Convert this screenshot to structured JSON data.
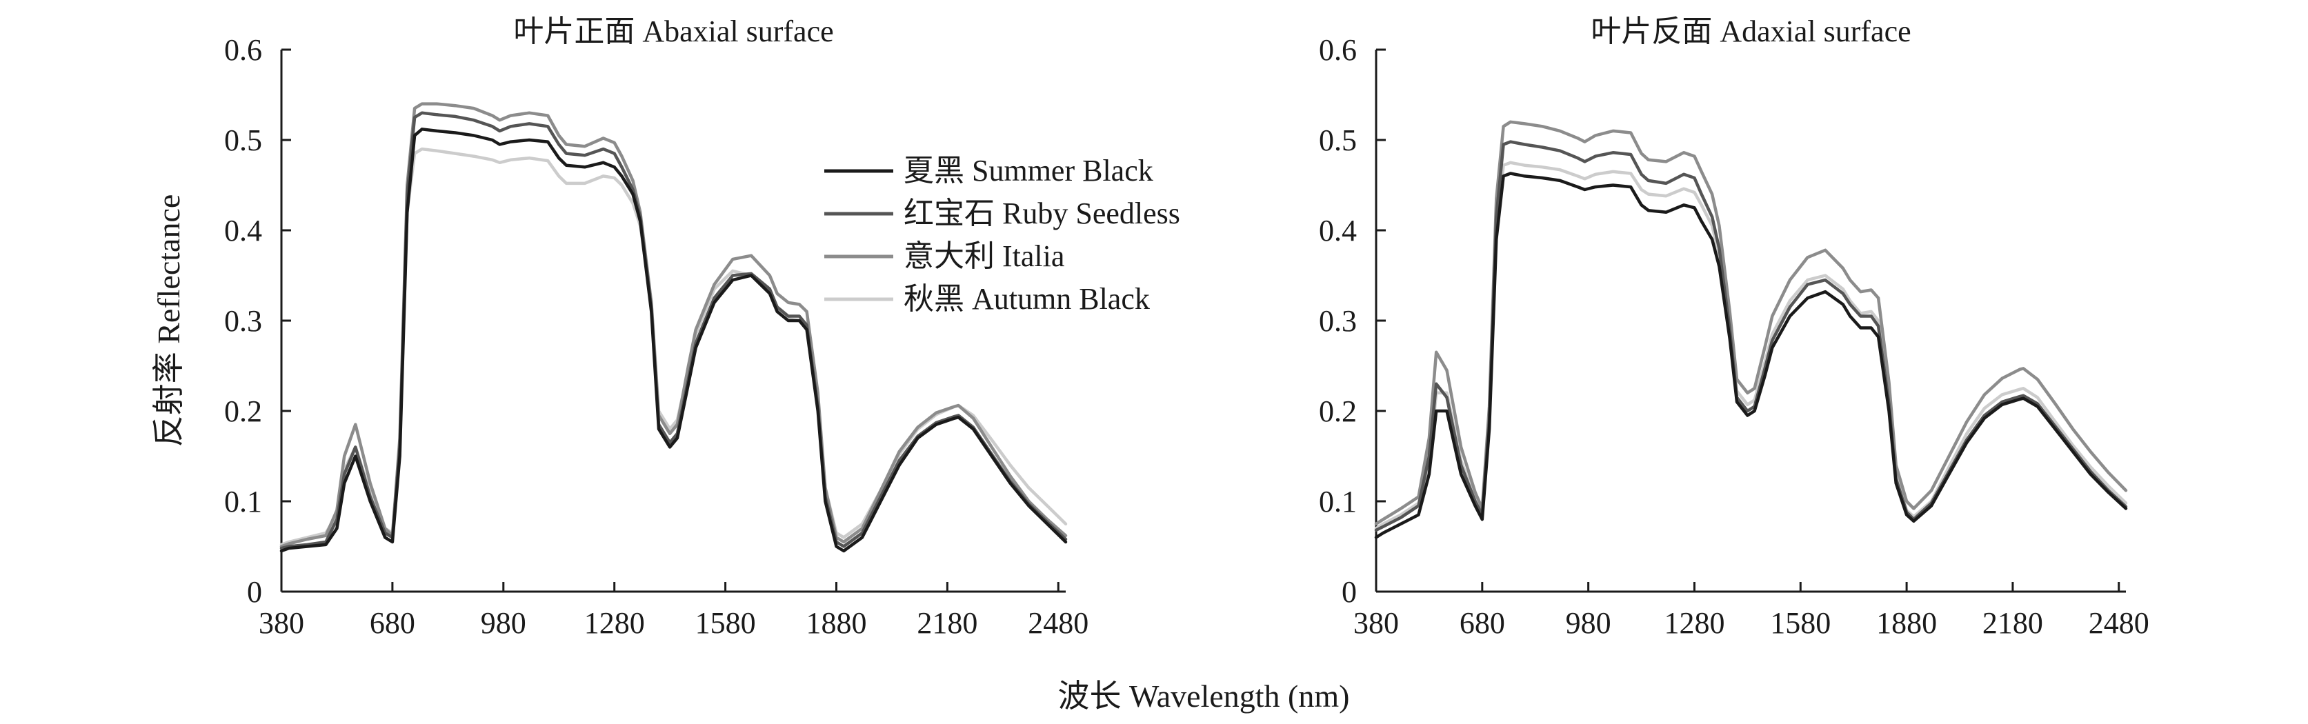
{
  "chart_data": [
    {
      "type": "line",
      "title": "叶片正面 Abaxial surface",
      "ylabel": "反射率 Reflectance",
      "xlim": [
        380,
        2500
      ],
      "ylim": [
        0,
        0.6
      ],
      "xticks": [
        "380",
        "680",
        "980",
        "1280",
        "1580",
        "1880",
        "2180",
        "2480"
      ],
      "yticks": [
        "0",
        "0.1",
        "0.2",
        "0.3",
        "0.4",
        "0.5",
        "0.6"
      ],
      "legend": "top-right",
      "series": [
        {
          "name": "夏黑 Summer Black",
          "color": "#1a1a1a",
          "x": [
            380,
            400,
            450,
            500,
            530,
            550,
            580,
            620,
            660,
            680,
            700,
            720,
            740,
            760,
            800,
            850,
            900,
            950,
            970,
            1000,
            1050,
            1100,
            1130,
            1150,
            1200,
            1250,
            1280,
            1300,
            1330,
            1350,
            1380,
            1400,
            1430,
            1450,
            1480,
            1500,
            1550,
            1600,
            1650,
            1700,
            1720,
            1750,
            1780,
            1800,
            1830,
            1850,
            1880,
            1900,
            1950,
            2000,
            2050,
            2100,
            2150,
            2200,
            2210,
            2250,
            2300,
            2350,
            2400,
            2450,
            2500
          ],
          "y": [
            0.045,
            0.048,
            0.05,
            0.052,
            0.07,
            0.12,
            0.15,
            0.1,
            0.06,
            0.055,
            0.15,
            0.42,
            0.505,
            0.512,
            0.51,
            0.508,
            0.505,
            0.5,
            0.495,
            0.498,
            0.5,
            0.498,
            0.48,
            0.472,
            0.47,
            0.475,
            0.47,
            0.46,
            0.44,
            0.41,
            0.31,
            0.18,
            0.16,
            0.17,
            0.23,
            0.27,
            0.32,
            0.345,
            0.35,
            0.33,
            0.31,
            0.3,
            0.3,
            0.29,
            0.2,
            0.1,
            0.05,
            0.045,
            0.06,
            0.1,
            0.14,
            0.17,
            0.185,
            0.192,
            0.193,
            0.18,
            0.15,
            0.12,
            0.095,
            0.075,
            0.055
          ]
        },
        {
          "name": "红宝石 Ruby Seedless",
          "color": "#555555",
          "x": [
            380,
            400,
            450,
            500,
            530,
            550,
            580,
            620,
            660,
            680,
            700,
            720,
            740,
            760,
            800,
            850,
            900,
            950,
            970,
            1000,
            1050,
            1100,
            1130,
            1150,
            1200,
            1250,
            1280,
            1300,
            1330,
            1350,
            1380,
            1400,
            1430,
            1450,
            1480,
            1500,
            1550,
            1600,
            1650,
            1700,
            1720,
            1750,
            1780,
            1800,
            1830,
            1850,
            1880,
            1900,
            1950,
            2000,
            2050,
            2100,
            2150,
            2200,
            2210,
            2250,
            2300,
            2350,
            2400,
            2450,
            2500
          ],
          "y": [
            0.048,
            0.05,
            0.052,
            0.055,
            0.08,
            0.13,
            0.16,
            0.105,
            0.065,
            0.06,
            0.16,
            0.44,
            0.525,
            0.53,
            0.528,
            0.526,
            0.522,
            0.515,
            0.51,
            0.515,
            0.518,
            0.515,
            0.495,
            0.485,
            0.483,
            0.49,
            0.485,
            0.47,
            0.445,
            0.415,
            0.315,
            0.185,
            0.165,
            0.175,
            0.235,
            0.275,
            0.325,
            0.35,
            0.352,
            0.335,
            0.315,
            0.305,
            0.305,
            0.295,
            0.205,
            0.105,
            0.055,
            0.05,
            0.065,
            0.105,
            0.145,
            0.172,
            0.187,
            0.194,
            0.195,
            0.182,
            0.152,
            0.122,
            0.097,
            0.077,
            0.058
          ]
        },
        {
          "name": "意大利 Italia",
          "color": "#8c8c8c",
          "x": [
            380,
            400,
            450,
            500,
            530,
            550,
            580,
            620,
            660,
            680,
            700,
            720,
            740,
            760,
            800,
            850,
            900,
            950,
            970,
            1000,
            1050,
            1100,
            1130,
            1150,
            1200,
            1250,
            1280,
            1300,
            1330,
            1350,
            1380,
            1400,
            1430,
            1450,
            1480,
            1500,
            1550,
            1600,
            1650,
            1700,
            1720,
            1750,
            1780,
            1800,
            1830,
            1850,
            1880,
            1900,
            1950,
            2000,
            2050,
            2100,
            2150,
            2200,
            2210,
            2250,
            2300,
            2350,
            2400,
            2450,
            2500
          ],
          "y": [
            0.05,
            0.053,
            0.058,
            0.062,
            0.09,
            0.15,
            0.185,
            0.12,
            0.07,
            0.062,
            0.17,
            0.45,
            0.535,
            0.54,
            0.54,
            0.538,
            0.535,
            0.527,
            0.522,
            0.527,
            0.53,
            0.527,
            0.505,
            0.495,
            0.493,
            0.502,
            0.497,
            0.482,
            0.455,
            0.42,
            0.32,
            0.195,
            0.175,
            0.185,
            0.25,
            0.29,
            0.34,
            0.368,
            0.372,
            0.35,
            0.33,
            0.32,
            0.318,
            0.31,
            0.22,
            0.115,
            0.06,
            0.055,
            0.07,
            0.112,
            0.155,
            0.182,
            0.198,
            0.205,
            0.206,
            0.192,
            0.16,
            0.128,
            0.1,
            0.08,
            0.062
          ]
        },
        {
          "name": "秋黑 Autumn Black",
          "color": "#cccccc",
          "x": [
            380,
            400,
            450,
            500,
            530,
            550,
            580,
            620,
            660,
            680,
            700,
            720,
            740,
            760,
            800,
            850,
            900,
            950,
            970,
            1000,
            1050,
            1100,
            1130,
            1150,
            1200,
            1250,
            1280,
            1300,
            1330,
            1350,
            1380,
            1400,
            1430,
            1450,
            1480,
            1500,
            1550,
            1600,
            1650,
            1700,
            1720,
            1750,
            1780,
            1800,
            1830,
            1850,
            1880,
            1900,
            1950,
            2000,
            2050,
            2100,
            2150,
            2200,
            2210,
            2250,
            2300,
            2350,
            2400,
            2450,
            2500
          ],
          "y": [
            0.052,
            0.055,
            0.06,
            0.065,
            0.085,
            0.135,
            0.16,
            0.11,
            0.07,
            0.065,
            0.16,
            0.42,
            0.485,
            0.49,
            0.488,
            0.485,
            0.482,
            0.478,
            0.475,
            0.478,
            0.48,
            0.477,
            0.46,
            0.452,
            0.452,
            0.46,
            0.458,
            0.45,
            0.43,
            0.405,
            0.32,
            0.2,
            0.18,
            0.19,
            0.245,
            0.285,
            0.335,
            0.355,
            0.35,
            0.33,
            0.312,
            0.302,
            0.3,
            0.292,
            0.21,
            0.115,
            0.065,
            0.06,
            0.075,
            0.112,
            0.152,
            0.18,
            0.196,
            0.205,
            0.206,
            0.195,
            0.168,
            0.14,
            0.115,
            0.095,
            0.075
          ]
        }
      ]
    },
    {
      "type": "line",
      "title": "叶片反面 Adaxial surface",
      "ylabel": "",
      "xlim": [
        380,
        2500
      ],
      "ylim": [
        0,
        0.6
      ],
      "xticks": [
        "380",
        "680",
        "980",
        "1280",
        "1580",
        "1880",
        "2180",
        "2480"
      ],
      "yticks": [
        "0",
        "0.1",
        "0.2",
        "0.3",
        "0.4",
        "0.5",
        "0.6"
      ],
      "legend": "none",
      "series": [
        {
          "name": "夏黑 Summer Black",
          "color": "#1a1a1a",
          "x": [
            380,
            400,
            450,
            500,
            530,
            550,
            580,
            620,
            660,
            680,
            700,
            720,
            740,
            760,
            800,
            850,
            900,
            950,
            970,
            1000,
            1050,
            1100,
            1130,
            1150,
            1200,
            1250,
            1280,
            1300,
            1330,
            1350,
            1380,
            1400,
            1430,
            1450,
            1480,
            1500,
            1550,
            1600,
            1650,
            1700,
            1720,
            1750,
            1780,
            1800,
            1830,
            1850,
            1880,
            1900,
            1950,
            2000,
            2050,
            2100,
            2150,
            2200,
            2210,
            2250,
            2300,
            2350,
            2400,
            2450,
            2500
          ],
          "y": [
            0.06,
            0.065,
            0.075,
            0.085,
            0.13,
            0.2,
            0.2,
            0.13,
            0.095,
            0.08,
            0.18,
            0.39,
            0.46,
            0.463,
            0.46,
            0.458,
            0.455,
            0.448,
            0.445,
            0.448,
            0.45,
            0.448,
            0.428,
            0.422,
            0.42,
            0.428,
            0.425,
            0.41,
            0.39,
            0.36,
            0.28,
            0.21,
            0.195,
            0.2,
            0.24,
            0.27,
            0.305,
            0.325,
            0.332,
            0.318,
            0.305,
            0.292,
            0.292,
            0.282,
            0.2,
            0.12,
            0.085,
            0.078,
            0.095,
            0.13,
            0.165,
            0.192,
            0.207,
            0.213,
            0.214,
            0.205,
            0.18,
            0.155,
            0.13,
            0.11,
            0.092
          ]
        },
        {
          "name": "红宝石 Ruby Seedless",
          "color": "#555555",
          "x": [
            380,
            400,
            450,
            500,
            530,
            550,
            580,
            620,
            660,
            680,
            700,
            720,
            740,
            760,
            800,
            850,
            900,
            950,
            970,
            1000,
            1050,
            1100,
            1130,
            1150,
            1200,
            1250,
            1280,
            1300,
            1330,
            1350,
            1380,
            1400,
            1430,
            1450,
            1480,
            1500,
            1550,
            1600,
            1650,
            1700,
            1720,
            1750,
            1780,
            1800,
            1830,
            1850,
            1880,
            1900,
            1950,
            2000,
            2050,
            2100,
            2150,
            2200,
            2210,
            2250,
            2300,
            2350,
            2400,
            2450,
            2500
          ],
          "y": [
            0.068,
            0.072,
            0.082,
            0.095,
            0.15,
            0.23,
            0.215,
            0.14,
            0.1,
            0.085,
            0.19,
            0.415,
            0.495,
            0.498,
            0.495,
            0.492,
            0.488,
            0.48,
            0.476,
            0.482,
            0.486,
            0.484,
            0.462,
            0.455,
            0.452,
            0.462,
            0.458,
            0.44,
            0.415,
            0.38,
            0.29,
            0.215,
            0.2,
            0.205,
            0.248,
            0.278,
            0.315,
            0.34,
            0.345,
            0.33,
            0.318,
            0.305,
            0.305,
            0.294,
            0.208,
            0.125,
            0.088,
            0.08,
            0.098,
            0.133,
            0.168,
            0.195,
            0.21,
            0.216,
            0.217,
            0.208,
            0.183,
            0.158,
            0.133,
            0.112,
            0.094
          ]
        },
        {
          "name": "意大利 Italia",
          "color": "#8c8c8c",
          "x": [
            380,
            400,
            450,
            500,
            530,
            550,
            580,
            620,
            660,
            680,
            700,
            720,
            740,
            760,
            800,
            850,
            900,
            950,
            970,
            1000,
            1050,
            1100,
            1130,
            1150,
            1200,
            1250,
            1280,
            1300,
            1330,
            1350,
            1380,
            1400,
            1430,
            1450,
            1480,
            1500,
            1550,
            1600,
            1650,
            1700,
            1720,
            1750,
            1780,
            1800,
            1830,
            1850,
            1880,
            1900,
            1950,
            2000,
            2050,
            2100,
            2150,
            2200,
            2210,
            2250,
            2300,
            2350,
            2400,
            2450,
            2500
          ],
          "y": [
            0.075,
            0.08,
            0.092,
            0.105,
            0.17,
            0.265,
            0.245,
            0.16,
            0.11,
            0.092,
            0.205,
            0.435,
            0.515,
            0.52,
            0.518,
            0.515,
            0.51,
            0.502,
            0.498,
            0.505,
            0.51,
            0.508,
            0.485,
            0.478,
            0.476,
            0.486,
            0.482,
            0.465,
            0.44,
            0.405,
            0.31,
            0.235,
            0.22,
            0.225,
            0.272,
            0.305,
            0.345,
            0.37,
            0.378,
            0.358,
            0.345,
            0.332,
            0.334,
            0.325,
            0.232,
            0.14,
            0.1,
            0.092,
            0.112,
            0.15,
            0.188,
            0.218,
            0.236,
            0.246,
            0.247,
            0.235,
            0.208,
            0.18,
            0.155,
            0.132,
            0.112
          ]
        },
        {
          "name": "秋黑 Autumn Black",
          "color": "#cccccc",
          "x": [
            380,
            400,
            450,
            500,
            530,
            550,
            580,
            620,
            660,
            680,
            700,
            720,
            740,
            760,
            800,
            850,
            900,
            950,
            970,
            1000,
            1050,
            1100,
            1130,
            1150,
            1200,
            1250,
            1280,
            1300,
            1330,
            1350,
            1380,
            1400,
            1430,
            1450,
            1480,
            1500,
            1550,
            1600,
            1650,
            1700,
            1720,
            1750,
            1780,
            1800,
            1830,
            1850,
            1880,
            1900,
            1950,
            2000,
            2050,
            2100,
            2150,
            2200,
            2210,
            2250,
            2300,
            2350,
            2400,
            2450,
            2500
          ],
          "y": [
            0.07,
            0.075,
            0.085,
            0.098,
            0.14,
            0.22,
            0.22,
            0.145,
            0.102,
            0.088,
            0.19,
            0.4,
            0.472,
            0.475,
            0.472,
            0.47,
            0.467,
            0.46,
            0.457,
            0.462,
            0.465,
            0.463,
            0.445,
            0.44,
            0.438,
            0.446,
            0.442,
            0.428,
            0.405,
            0.372,
            0.29,
            0.222,
            0.207,
            0.212,
            0.255,
            0.285,
            0.322,
            0.345,
            0.35,
            0.335,
            0.322,
            0.308,
            0.31,
            0.3,
            0.212,
            0.128,
            0.09,
            0.083,
            0.1,
            0.138,
            0.175,
            0.203,
            0.218,
            0.224,
            0.225,
            0.215,
            0.188,
            0.162,
            0.138,
            0.117,
            0.098
          ]
        }
      ]
    }
  ],
  "shared_xlabel": "波长 Wavelength (nm)"
}
